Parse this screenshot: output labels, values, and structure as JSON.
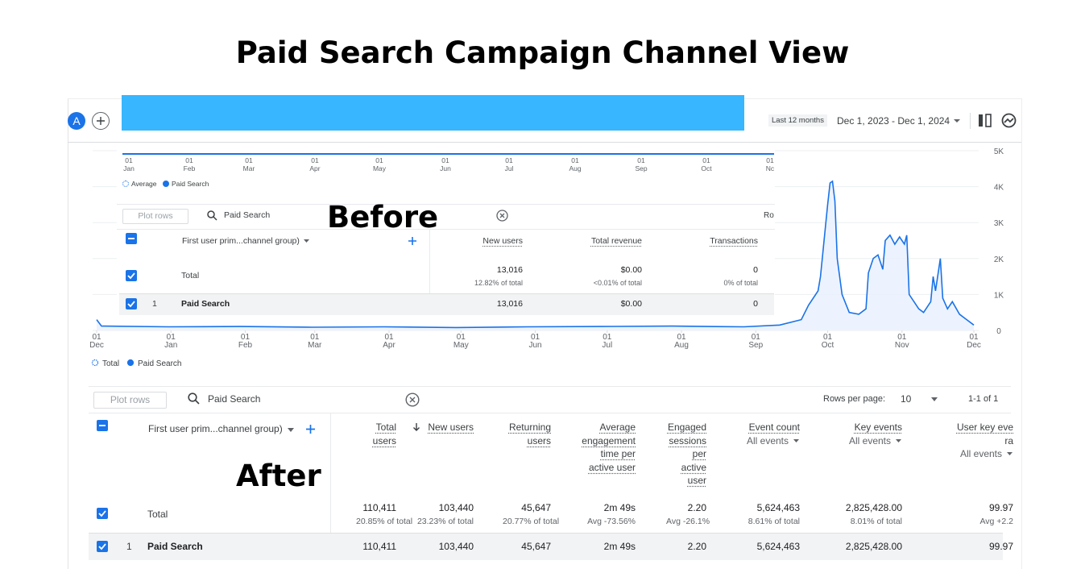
{
  "title": "Paid Search Campaign Channel View",
  "toolbar": {
    "avatar": "A",
    "date_preset": "Last 12 months",
    "date_range": "Dec 1, 2023 - Dec 1, 2024"
  },
  "before": {
    "label": "Before",
    "x_ticks": [
      {
        "day": "01",
        "month": "Jan"
      },
      {
        "day": "01",
        "month": "Feb"
      },
      {
        "day": "01",
        "month": "Mar"
      },
      {
        "day": "01",
        "month": "Apr"
      },
      {
        "day": "01",
        "month": "May"
      },
      {
        "day": "01",
        "month": "Jun"
      },
      {
        "day": "01",
        "month": "Jul"
      },
      {
        "day": "01",
        "month": "Aug"
      },
      {
        "day": "01",
        "month": "Sep"
      },
      {
        "day": "01",
        "month": "Oct"
      },
      {
        "day": "01",
        "month": "Nc"
      }
    ],
    "legend": [
      "Average",
      "Paid Search"
    ],
    "plot_rows": "Plot rows",
    "search": "Paid Search",
    "rows_cut": "Ro",
    "dimension": "First user prim...channel group)",
    "columns": [
      {
        "name": "New users"
      },
      {
        "name": "Total revenue"
      },
      {
        "name": "Transactions"
      }
    ],
    "total": {
      "label": "Total",
      "values": [
        "13,016",
        "$0.00",
        "0"
      ],
      "shares": [
        "12.82% of total",
        "<0.01% of total",
        "0% of total"
      ]
    },
    "rows": [
      {
        "index": "1",
        "name": "Paid Search",
        "values": [
          "13,016",
          "$0.00",
          "0"
        ]
      }
    ]
  },
  "after": {
    "label": "After",
    "chart": {
      "type": "line",
      "color": "#1a73e8",
      "grid": true,
      "x": [
        0,
        2,
        30,
        60,
        90,
        120,
        150,
        180,
        210,
        240,
        270,
        285,
        294,
        297,
        301,
        302,
        305,
        306,
        307,
        308,
        309,
        311,
        314,
        318,
        321,
        322,
        324,
        326,
        328,
        329,
        331,
        333,
        335,
        337,
        338,
        339,
        341,
        343,
        345,
        348,
        349,
        350,
        352,
        353,
        355,
        357,
        360,
        363,
        366
      ],
      "values": [
        300,
        120,
        100,
        110,
        90,
        100,
        80,
        100,
        110,
        120,
        100,
        150,
        300,
        700,
        1100,
        1500,
        3500,
        4100,
        4150,
        3600,
        2000,
        1000,
        500,
        450,
        600,
        1600,
        2000,
        2100,
        1700,
        2500,
        2650,
        2400,
        2600,
        2400,
        2650,
        1000,
        800,
        600,
        500,
        800,
        1500,
        1100,
        2000,
        900,
        600,
        800,
        450,
        300,
        150
      ],
      "xlim": [
        0,
        368
      ],
      "ylim": [
        0,
        5000
      ],
      "yticks": [
        0,
        {
          "value": 1000,
          "label": "1K"
        },
        {
          "value": 2000,
          "label": "2K"
        },
        {
          "value": 3000,
          "label": "3K"
        },
        {
          "value": 4000,
          "label": "4K"
        },
        {
          "value": 5000,
          "label": "5K"
        }
      ],
      "xticks": [
        {
          "value": 0,
          "day": "01",
          "label": "Dec"
        },
        {
          "value": 31,
          "day": "01",
          "label": "Jan"
        },
        {
          "value": 62,
          "day": "01",
          "label": "Feb"
        },
        {
          "value": 91,
          "day": "01",
          "label": "Mar"
        },
        {
          "value": 122,
          "day": "01",
          "label": "Apr"
        },
        {
          "value": 152,
          "day": "01",
          "label": "May"
        },
        {
          "value": 183,
          "day": "01",
          "label": "Jun"
        },
        {
          "value": 213,
          "day": "01",
          "label": "Jul"
        },
        {
          "value": 244,
          "day": "01",
          "label": "Aug"
        },
        {
          "value": 275,
          "day": "01",
          "label": "Sep"
        },
        {
          "value": 305,
          "day": "01",
          "label": "Oct"
        },
        {
          "value": 336,
          "day": "01",
          "label": "Nov"
        },
        {
          "value": 366,
          "day": "01",
          "label": "Dec"
        }
      ],
      "legend": [
        "Total",
        "Paid Search"
      ]
    },
    "plot_rows": "Plot rows",
    "search": "Paid Search",
    "rows_per_page_label": "Rows per page:",
    "rows_per_page": "10",
    "pagination": "1-1 of 1",
    "dimension": "First user prim...channel group)",
    "columns": [
      {
        "name": "Total users"
      },
      {
        "name": "New users"
      },
      {
        "name": "Returning users"
      },
      {
        "name": "Average engagement time per active user"
      },
      {
        "name": "Engaged sessions per active user"
      },
      {
        "name": "Event count",
        "filter": "All events"
      },
      {
        "name": "Key events",
        "filter": "All events"
      },
      {
        "name": "User key eve",
        "name2": "ra",
        "filter": "All events"
      }
    ],
    "total": {
      "label": "Total",
      "values": [
        "110,411",
        "103,440",
        "45,647",
        "2m 49s",
        "2.20",
        "5,624,463",
        "2,825,428.00",
        "99.97"
      ],
      "shares": [
        "20.85% of total",
        "23.23% of total",
        "20.77% of total",
        "Avg -73.56%",
        "Avg -26.1%",
        "8.61% of total",
        "8.01% of total",
        "Avg +2.2"
      ]
    },
    "rows": [
      {
        "index": "1",
        "name": "Paid Search",
        "values": [
          "110,411",
          "103,440",
          "45,647",
          "2m 49s",
          "2.20",
          "5,624,463",
          "2,825,428.00",
          "99.97"
        ]
      }
    ]
  }
}
